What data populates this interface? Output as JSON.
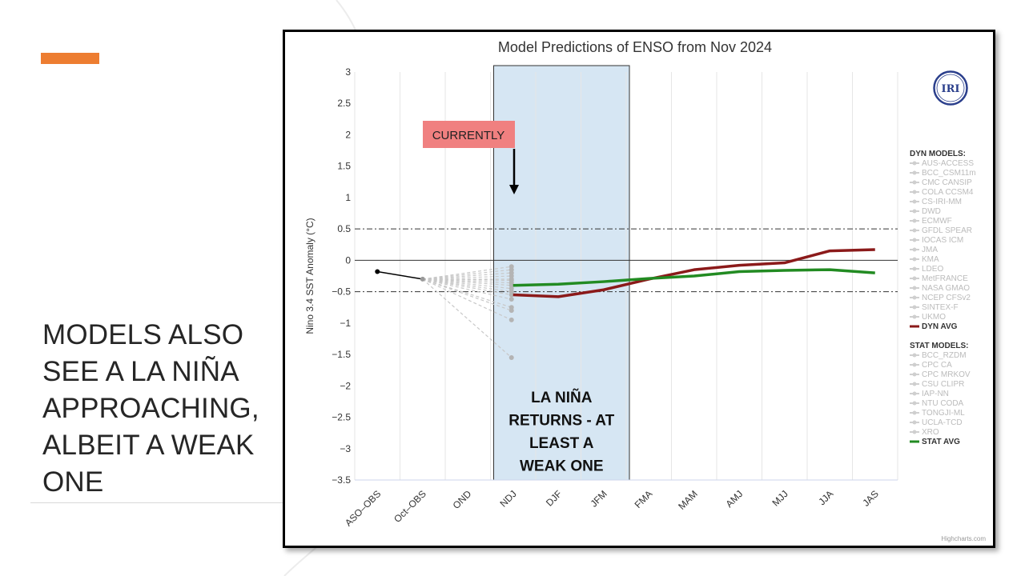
{
  "slide": {
    "title": "MODELS ALSO SEE A LA NIÑA APPROACHING, ALBEIT A WEAK ONE",
    "accent_color": "#ED7D31"
  },
  "chart_data": {
    "type": "line",
    "title": "Model Predictions of ENSO from Nov 2024",
    "ylabel": "Nino 3.4 SST Anomaly (°C)",
    "xlabel": "",
    "ylim": [
      -3.5,
      3
    ],
    "y_ticks": [
      3,
      2.5,
      2,
      1.5,
      1,
      0.5,
      0,
      -0.5,
      -1,
      -1.5,
      -2,
      -2.5,
      -3,
      -3.5
    ],
    "y_tick_labels": [
      "3",
      "2.5",
      "2",
      "1.5",
      "1",
      "0.5",
      "0",
      "−0.5",
      "−1",
      "−1.5",
      "−2",
      "−2.5",
      "−3",
      "−3.5"
    ],
    "categories": [
      "ASO–OBS",
      "Oct–OBS",
      "OND",
      "NDJ",
      "DJF",
      "JFM",
      "FMA",
      "MAM",
      "AMJ",
      "MJJ",
      "JJA",
      "JAS"
    ],
    "grid": true,
    "reference_lines": [
      0.5,
      -0.5
    ],
    "observed": {
      "name": "Observed",
      "x": [
        "ASO–OBS",
        "Oct–OBS"
      ],
      "values": [
        -0.18,
        -0.3
      ],
      "color": "#000000"
    },
    "ond_model_values": [
      -0.1,
      -0.15,
      -0.2,
      -0.25,
      -0.3,
      -0.32,
      -0.36,
      -0.4,
      -0.45,
      -0.5,
      -0.55,
      -0.62,
      -0.75,
      -0.8,
      -0.95,
      -1.55
    ],
    "series": [
      {
        "name": "DYN AVG",
        "color": "#8B1A1A",
        "x": [
          "NDJ",
          "DJF",
          "JFM",
          "FMA",
          "MAM",
          "AMJ",
          "MJJ",
          "JJA",
          "JAS"
        ],
        "values": [
          -0.55,
          -0.58,
          -0.47,
          -0.3,
          -0.15,
          -0.08,
          -0.04,
          0.15,
          0.17
        ]
      },
      {
        "name": "STAT AVG",
        "color": "#228B22",
        "x": [
          "NDJ",
          "DJF",
          "JFM",
          "FMA",
          "MAM",
          "AMJ",
          "MJJ",
          "JJA",
          "JAS"
        ],
        "values": [
          -0.4,
          -0.38,
          -0.34,
          -0.29,
          -0.25,
          -0.18,
          -0.16,
          -0.15,
          -0.2
        ]
      }
    ],
    "legend": {
      "position": "right",
      "dyn_header": "DYN MODELS:",
      "dyn_models": [
        "AUS-ACCESS",
        "BCC_CSM11m",
        "CMC CANSIP",
        "COLA CCSM4",
        "CS-IRI-MM",
        "DWD",
        "ECMWF",
        "GFDL SPEAR",
        "IOCAS ICM",
        "JMA",
        "KMA",
        "LDEO",
        "MetFRANCE",
        "NASA GMAO",
        "NCEP CFSv2",
        "SINTEX-F",
        "UKMO"
      ],
      "dyn_avg_label": "DYN AVG",
      "stat_header": "STAT MODELS:",
      "stat_models": [
        "BCC_RZDM",
        "CPC CA",
        "CPC MRKOV",
        "CSU CLIPR",
        "IAP-NN",
        "NTU CODA",
        "TONGJI-ML",
        "UCLA-TCD",
        "XRO"
      ],
      "stat_avg_label": "STAT AVG"
    },
    "annotations": {
      "currently": "CURRENTLY",
      "currently_color": "#F08080",
      "highlight_from": "NDJ",
      "highlight_to": "FMA",
      "highlight_label": "LA NIÑA RETURNS - AT LEAST A WEAK ONE",
      "highlight_color": "#D6E6F3"
    },
    "logo_text": "IRI",
    "credit": "Highcharts.com"
  }
}
